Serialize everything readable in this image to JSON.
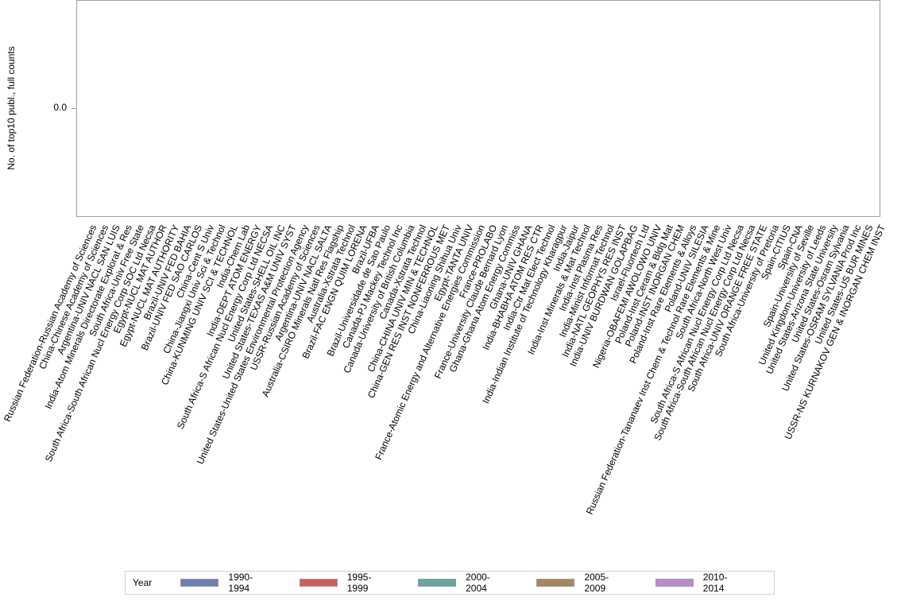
{
  "chart_data": {
    "type": "bar",
    "title": "",
    "xlabel": "",
    "ylabel": "No. of top10 publ., full counts",
    "yticks": [
      "0.0"
    ],
    "ylim": [
      -1,
      1
    ],
    "grid": false,
    "legend_position": "bottom",
    "legend_title": "Year",
    "categories": [
      "Russian Federation-Russian Academy of Sciences",
      "China-Chinese Academy of Sciences",
      "Argentina-UNIV NACL SAN LUIS",
      "India-Atom Minerals Directorate Explorat & Res",
      "South Africa-Univ Free State",
      "South Africa-South African Nucl Energy Corp SOC Ltd Necsa",
      "Egypt-NUCL MAT AUTHOR",
      "Egypt-NUCL MAT AUTHORITY",
      "Brazil-UNIV FED BAHIA",
      "Brazil-UNIV FED SAO CARLOS",
      "China-Cent S Univ",
      "China-Jiangxi Univ Sci & Technol",
      "China-KUNMING UNIV SCI & TECHNOL",
      "India-Chem Lab",
      "India-DEPT ATOM ENERGY",
      "South Africa-S African Nucl Energy Corp Ltd NECSA",
      "United States-SHELL OIL INC",
      "United States-TEXAS A&M UNIV SYST",
      "United States-United States Environmental Protection Agency",
      "USSR-Russian Academy of Sciences",
      "Argentina-UNIV NACL SALTA",
      "Australia-CSIRO Minerals Natl Res Flagship",
      "Australia-Xstrata Technol",
      "Brazil-FAC ENGN QUIM LORENA",
      "Brazil-UFBA",
      "Brazil-Universidade de Sao Paulo",
      "Canada-PJ Mackey Technol Inc",
      "Canada-University of British Columbia",
      "Canada-Xstrata Technol",
      "China-CHINA UNIV MIN & TECHNOL",
      "China-GEN RES INST NONFERROUS MET",
      "China-Liaoning Shihua Univ",
      "Egypt-TANTA UNIV",
      "France-Atomic Energy and Alternative Energies Commission",
      "France-PROLABO",
      "France-University Claude Bernard Lyon",
      "Ghana-Ghana Atom Energy Commiss",
      "Ghana-UNIV GHANA",
      "India-BHABHA ATOM RES CTR",
      "India-Ctr Mat Elect Technol",
      "India-Indian Institute of Technology Kharagpur",
      "India-Jaipur",
      "India-Inst Minerals & Mat Technol",
      "India-Inst Plasma Res",
      "India-Minist Informat Technol",
      "India-NATL GEOPHYS RES INST",
      "India-UNIV BURDWAN GOLAPBAG",
      "Israel-Fluortech Ltd",
      "Nigeria-OBAFEMI AWOLOWO UNIV",
      "Poland-Inst Ceram & Bldg Mat",
      "Poland-INST INORGAN CHEM",
      "Poland-Inst Rare Elements & Alloys",
      "Poland-UNIV SILESIA",
      "Russian Federation-Tananaev Inst Chem & Technol Rare Elements & Mine",
      "South Africa-North West Univ",
      "South Africa-S African Nucl Energy Corp Ltd Necsa",
      "South Africa-South African Nucl Energy Corp Ltd Necsa",
      "South Africa-UNIV ORANGE FREE STATE",
      "South Africa-University of Pretoria",
      "Spain-CITIUS",
      "Spain-CNA",
      "Spain-University of Seville",
      "United Kingdom-University of Leeds",
      "United States-Arizona State University",
      "United States-Osram Sylvania",
      "United States-OSRAM SYLVANIA Prod Inc",
      "United States-US BUR MINES",
      "USSR-NS KURNAKOV GEN & INORGAN CHEM INST"
    ],
    "series": [
      {
        "name": "1990-1994",
        "color": "#6f7eb3",
        "values": [
          0,
          0,
          0,
          0,
          0,
          0,
          0,
          0,
          0,
          0,
          0,
          0,
          0,
          0,
          0,
          0,
          0,
          0,
          0,
          0,
          0,
          0,
          0,
          0,
          0,
          0,
          0,
          0,
          0,
          0,
          0,
          0,
          0,
          0,
          0,
          0,
          0,
          0,
          0,
          0,
          0,
          0,
          0,
          0,
          0,
          0,
          0,
          0,
          0,
          0,
          0,
          0,
          0,
          0,
          0,
          0,
          0,
          0,
          0,
          0,
          0,
          0,
          0,
          0,
          0,
          0,
          0,
          0
        ]
      },
      {
        "name": "1995-1999",
        "color": "#d05b5b",
        "values": [
          0,
          0,
          0,
          0,
          0,
          0,
          0,
          0,
          0,
          0,
          0,
          0,
          0,
          0,
          0,
          0,
          0,
          0,
          0,
          0,
          0,
          0,
          0,
          0,
          0,
          0,
          0,
          0,
          0,
          0,
          0,
          0,
          0,
          0,
          0,
          0,
          0,
          0,
          0,
          0,
          0,
          0,
          0,
          0,
          0,
          0,
          0,
          0,
          0,
          0,
          0,
          0,
          0,
          0,
          0,
          0,
          0,
          0,
          0,
          0,
          0,
          0,
          0,
          0,
          0,
          0,
          0,
          0
        ]
      },
      {
        "name": "2000-2004",
        "color": "#66a5a0",
        "values": [
          0,
          0,
          0,
          0,
          0,
          0,
          0,
          0,
          0,
          0,
          0,
          0,
          0,
          0,
          0,
          0,
          0,
          0,
          0,
          0,
          0,
          0,
          0,
          0,
          0,
          0,
          0,
          0,
          0,
          0,
          0,
          0,
          0,
          0,
          0,
          0,
          0,
          0,
          0,
          0,
          0,
          0,
          0,
          0,
          0,
          0,
          0,
          0,
          0,
          0,
          0,
          0,
          0,
          0,
          0,
          0,
          0,
          0,
          0,
          0,
          0,
          0,
          0,
          0,
          0,
          0,
          0,
          0
        ]
      },
      {
        "name": "2005-2009",
        "color": "#a8865e",
        "values": [
          0,
          0,
          0,
          0,
          0,
          0,
          0,
          0,
          0,
          0,
          0,
          0,
          0,
          0,
          0,
          0,
          0,
          0,
          0,
          0,
          0,
          0,
          0,
          0,
          0,
          0,
          0,
          0,
          0,
          0,
          0,
          0,
          0,
          0,
          0,
          0,
          0,
          0,
          0,
          0,
          0,
          0,
          0,
          0,
          0,
          0,
          0,
          0,
          0,
          0,
          0,
          0,
          0,
          0,
          0,
          0,
          0,
          0,
          0,
          0,
          0,
          0,
          0,
          0,
          0,
          0,
          0,
          0
        ]
      },
      {
        "name": "2010-2014",
        "color": "#b88ccc",
        "values": [
          0,
          0,
          0,
          0,
          0,
          0,
          0,
          0,
          0,
          0,
          0,
          0,
          0,
          0,
          0,
          0,
          0,
          0,
          0,
          0,
          0,
          0,
          0,
          0,
          0,
          0,
          0,
          0,
          0,
          0,
          0,
          0,
          0,
          0,
          0,
          0,
          0,
          0,
          0,
          0,
          0,
          0,
          0,
          0,
          0,
          0,
          0,
          0,
          0,
          0,
          0,
          0,
          0,
          0,
          0,
          0,
          0,
          0,
          0,
          0,
          0,
          0,
          0,
          0,
          0,
          0,
          0,
          0
        ]
      }
    ]
  },
  "axis": {
    "y_title": "No. of top10 publ., full counts",
    "y_tick": "0.0"
  },
  "legend": {
    "title": "Year",
    "items": [
      {
        "label": "1990-1994",
        "color": "#6f7eb3"
      },
      {
        "label": "1995-1999",
        "color": "#d05b5b"
      },
      {
        "label": "2000-2004",
        "color": "#66a5a0"
      },
      {
        "label": "2005-2009",
        "color": "#a8865e"
      },
      {
        "label": "2010-2014",
        "color": "#b88ccc"
      }
    ]
  }
}
